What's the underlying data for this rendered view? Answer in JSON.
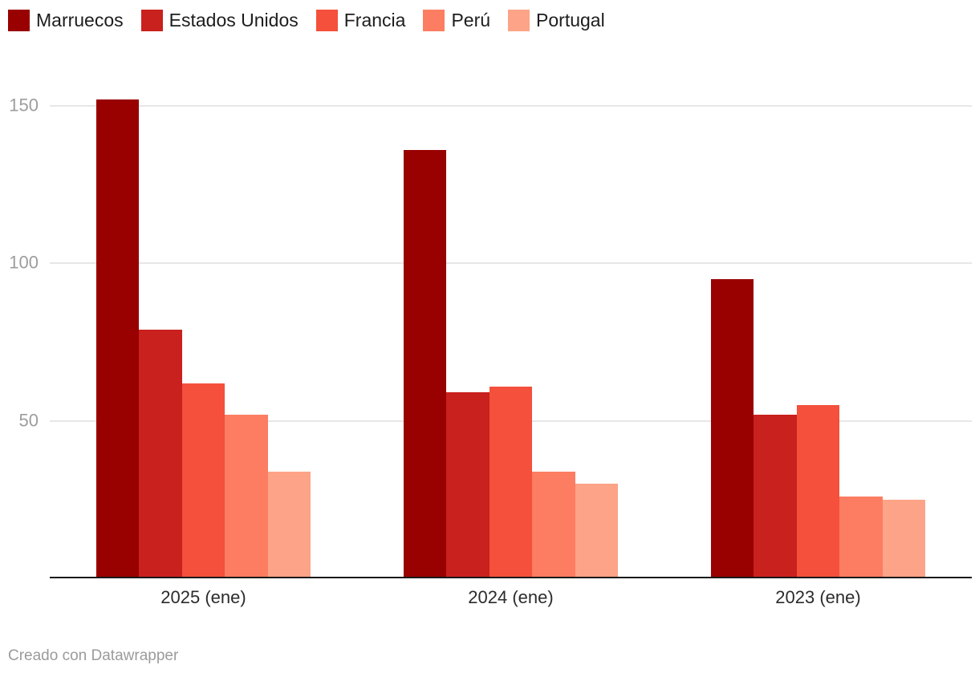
{
  "chart_data": {
    "type": "bar",
    "grouped": true,
    "title": "",
    "xlabel": "",
    "ylabel": "",
    "categories": [
      "2025 (ene)",
      "2024 (ene)",
      "2023 (ene)"
    ],
    "series": [
      {
        "name": "Marruecos",
        "color": "#990000",
        "values": [
          152,
          136,
          95
        ]
      },
      {
        "name": "Estados Unidos",
        "color": "#c9211d",
        "values": [
          79,
          59,
          52
        ]
      },
      {
        "name": "Francia",
        "color": "#f4503b",
        "values": [
          62,
          61,
          55
        ]
      },
      {
        "name": "Perú",
        "color": "#fc7d62",
        "values": [
          52,
          34,
          26
        ]
      },
      {
        "name": "Portugal",
        "color": "#fda387",
        "values": [
          34,
          30,
          25
        ]
      }
    ],
    "yticks": [
      50,
      100,
      150
    ],
    "ylim": [
      0,
      160
    ],
    "grid": true,
    "legend_position": "top-left",
    "colors": {
      "gridline": "#e7e7e7",
      "axis_line": "#1a1a1a",
      "y_tick_text": "#9d9d9d",
      "x_tick_text": "#2b2b2b",
      "legend_text": "#1d1d1d"
    }
  },
  "footer": {
    "credit": "Creado con Datawrapper"
  }
}
